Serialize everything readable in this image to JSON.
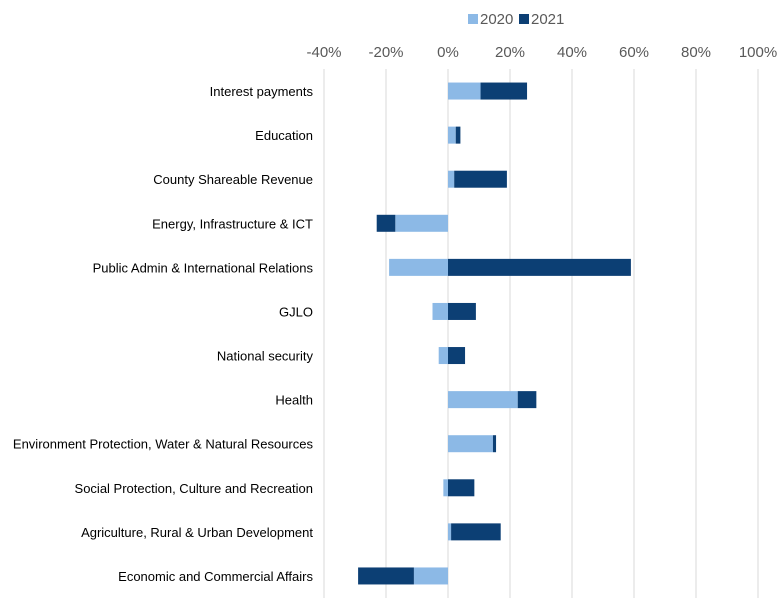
{
  "chart_data": {
    "type": "bar",
    "orientation": "horizontal",
    "stacked": true,
    "title": "",
    "xlabel": "",
    "ylabel": "",
    "xlim": [
      -40,
      100
    ],
    "x_ticks": [
      "-40%",
      "-20%",
      "0%",
      "20%",
      "40%",
      "60%",
      "80%",
      "100%"
    ],
    "grid": "vertical",
    "legend_position": "top",
    "categories": [
      "Interest payments",
      "Education",
      "County Shareable Revenue",
      "Energy, Infrastructure & ICT",
      "Public Admin & International Relations",
      "GJLO",
      "National security",
      "Health",
      "Environment Protection, Water & Natural Resources",
      "Social Protection, Culture and Recreation",
      "Agriculture, Rural & Urban Development",
      "Economic and Commercial Affairs"
    ],
    "series": [
      {
        "name": "2020",
        "color": "#8cb9e6",
        "values": [
          10.5,
          2.5,
          2,
          -17,
          -19,
          -5,
          -3,
          22.5,
          14.5,
          -1.5,
          1,
          -11
        ]
      },
      {
        "name": "2021",
        "color": "#0c3f74",
        "values": [
          15,
          1.5,
          17,
          -6,
          59,
          9,
          5.5,
          6,
          1,
          8.5,
          16,
          -18
        ]
      }
    ]
  }
}
